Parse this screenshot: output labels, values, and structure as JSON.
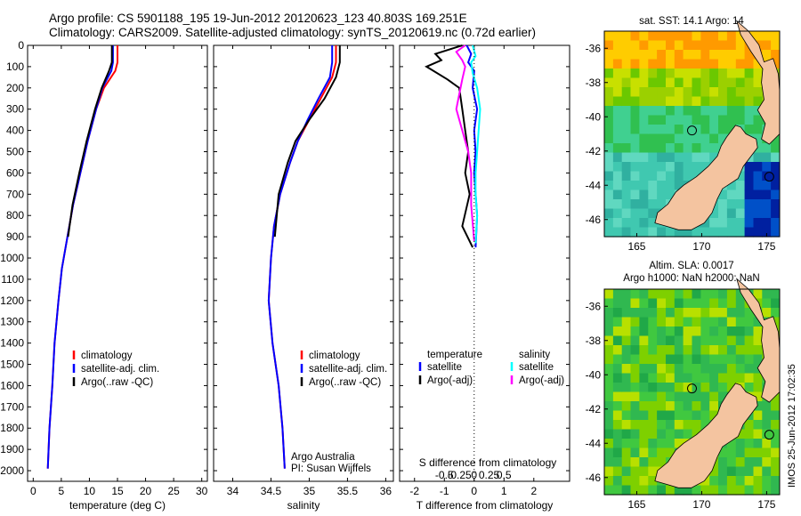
{
  "header": {
    "line1": "Argo profile: CS 5901188_195 19-Jun-2012 20120623_123 40.803S 169.251E",
    "line2": "Climatology: CARS2009. Satellite-adjusted climatology: synTS_20120619.nc (0.72d earlier)"
  },
  "colors": {
    "climatology": "#ff0000",
    "satellite": "#0000ff",
    "argo": "#000000",
    "satellite_salinity": "#00ffff",
    "argo_salinity": "#ff00ff",
    "land": "#f4c4a0"
  },
  "chart_data": [
    {
      "id": "temperature",
      "type": "line",
      "xlabel": "temperature (deg C)",
      "ylabel": "",
      "xlim": [
        -1,
        31
      ],
      "ylim": [
        2050,
        0
      ],
      "xticks": [
        0,
        5,
        10,
        15,
        20,
        25,
        30
      ],
      "yticks": [
        0,
        100,
        200,
        300,
        400,
        500,
        600,
        700,
        800,
        900,
        1000,
        1100,
        1200,
        1300,
        1400,
        1500,
        1600,
        1700,
        1800,
        1900,
        2000
      ],
      "legend_position": "center-left",
      "series": [
        {
          "name": "climatology",
          "color": "#ff0000",
          "x": [
            15.0,
            15.0,
            14.6,
            12.6,
            11.2,
            9.7,
            8.4,
            7.1,
            6.1,
            5.1,
            4.5,
            3.8,
            3.4,
            2.9,
            2.6
          ],
          "y": [
            0,
            80,
            120,
            200,
            300,
            450,
            600,
            750,
            900,
            1050,
            1200,
            1400,
            1600,
            1800,
            1990
          ]
        },
        {
          "name": "satellite-adj. clim.",
          "color": "#0000ff",
          "x": [
            14.2,
            14.2,
            13.9,
            12.3,
            11.2,
            9.7,
            8.4,
            7.1,
            6.1,
            5.1,
            4.5,
            3.8,
            3.4,
            2.9,
            2.6
          ],
          "y": [
            0,
            80,
            120,
            200,
            300,
            450,
            600,
            750,
            900,
            1050,
            1200,
            1400,
            1600,
            1800,
            1990
          ]
        },
        {
          "name": "Argo(..raw -QC)",
          "color": "#000000",
          "x": [
            14.0,
            14.0,
            13.5,
            12.2,
            11.0,
            9.5,
            8.2,
            7.0,
            6.2
          ],
          "y": [
            0,
            80,
            120,
            200,
            300,
            450,
            600,
            750,
            900
          ]
        }
      ]
    },
    {
      "id": "salinity",
      "type": "line",
      "xlabel": "salinity",
      "ylabel": "",
      "xlim": [
        33.75,
        36.1
      ],
      "ylim": [
        2050,
        0
      ],
      "xticks": [
        34,
        34.5,
        35,
        35.5,
        36
      ],
      "legend_position": "center-left",
      "series": [
        {
          "name": "climatology",
          "color": "#ff0000",
          "x": [
            35.35,
            35.35,
            35.3,
            35.15,
            35.0,
            34.85,
            34.75,
            34.62,
            34.54,
            34.5,
            34.47,
            34.52,
            34.6,
            34.65,
            34.68
          ],
          "y": [
            0,
            80,
            150,
            250,
            350,
            450,
            550,
            700,
            850,
            1000,
            1200,
            1400,
            1600,
            1800,
            1990
          ]
        },
        {
          "name": "satellite-adj. clim.",
          "color": "#0000ff",
          "x": [
            35.3,
            35.3,
            35.27,
            35.12,
            34.98,
            34.85,
            34.75,
            34.62,
            34.54,
            34.5,
            34.47,
            34.52,
            34.6,
            34.65,
            34.68
          ],
          "y": [
            0,
            80,
            150,
            250,
            350,
            450,
            550,
            700,
            850,
            1000,
            1200,
            1400,
            1600,
            1800,
            1990
          ]
        },
        {
          "name": "Argo(..raw -QC)",
          "color": "#000000",
          "x": [
            35.4,
            35.4,
            35.35,
            35.2,
            35.0,
            34.82,
            34.72,
            34.6,
            34.55
          ],
          "y": [
            0,
            80,
            150,
            250,
            350,
            450,
            550,
            700,
            900
          ]
        }
      ],
      "annotation": [
        "Argo Australia",
        "PI: Susan Wijffels"
      ]
    },
    {
      "id": "difference",
      "type": "line",
      "xlabel": "T difference from climatology",
      "xlabel_top": "S difference from climatology",
      "xlim": [
        -2.5,
        3.2
      ],
      "ylim": [
        2050,
        0
      ],
      "xticks": [
        -2,
        -1,
        0,
        1,
        2
      ],
      "xticks_top": [
        -0.5,
        -0.25,
        0,
        0.25,
        0.5
      ],
      "legend_headers": [
        "temperature",
        "salinity"
      ],
      "series": [
        {
          "name": "satellite",
          "group": "temperature",
          "color": "#0000ff",
          "x": [
            -0.25,
            -0.1,
            -0.2,
            0.0,
            -0.05,
            0.1,
            0.0,
            0.05,
            0.0,
            0.05,
            0.1,
            0.05
          ],
          "y": [
            0,
            40,
            80,
            120,
            200,
            300,
            400,
            500,
            600,
            700,
            800,
            950
          ]
        },
        {
          "name": "Argo(-adj)",
          "group": "temperature",
          "color": "#000000",
          "x": [
            -0.4,
            -1.3,
            -1.1,
            -1.6,
            -0.9,
            -0.5,
            -0.4,
            -0.3,
            -0.2,
            -0.3,
            -0.15,
            -0.4,
            -0.05
          ],
          "y": [
            0,
            40,
            70,
            100,
            160,
            200,
            300,
            400,
            500,
            600,
            700,
            850,
            950
          ]
        },
        {
          "name": "satellite",
          "group": "salinity",
          "color": "#00ffff",
          "x": [
            -0.05,
            0.05,
            -0.1,
            -0.05,
            0.1,
            0.2,
            0.15,
            0.1,
            0.05,
            0.05,
            0.1,
            0.05
          ],
          "y": [
            0,
            50,
            80,
            130,
            200,
            300,
            400,
            500,
            600,
            700,
            800,
            930
          ]
        },
        {
          "name": "Argo(-adj)",
          "group": "salinity",
          "color": "#ff00ff",
          "x": [
            -0.3,
            -0.6,
            -0.4,
            -0.3,
            -0.4,
            -0.5,
            -0.6,
            -0.4,
            -0.2,
            -0.1,
            -0.1,
            0.0
          ],
          "y": [
            0,
            30,
            70,
            100,
            160,
            230,
            300,
            400,
            500,
            600,
            750,
            920
          ]
        }
      ]
    },
    {
      "id": "sst_map",
      "type": "heatmap",
      "title": "sat. SST: 14.1  Argo: 14",
      "xlim": [
        162.5,
        176
      ],
      "ylim": [
        -47,
        -35
      ],
      "xticks": [
        165,
        170,
        175
      ],
      "yticks": [
        -36,
        -38,
        -40,
        -42,
        -44,
        -46
      ],
      "markers": [
        [
          169.25,
          -40.8
        ],
        [
          175.2,
          -43.5
        ]
      ]
    },
    {
      "id": "sla_map",
      "type": "heatmap",
      "title_lines": [
        "Altim. SLA: 0.0017",
        "Argo h1000: NaN h2000: NaN"
      ],
      "xlim": [
        162.5,
        176
      ],
      "ylim": [
        -47,
        -35
      ],
      "xticks": [
        165,
        170,
        175
      ],
      "yticks": [
        -36,
        -38,
        -40,
        -42,
        -44,
        -46
      ],
      "markers": [
        [
          169.25,
          -40.8
        ],
        [
          175.2,
          -43.5
        ]
      ]
    }
  ],
  "side_stamp": "IMOS 25-Jun-2012 17:02:35"
}
